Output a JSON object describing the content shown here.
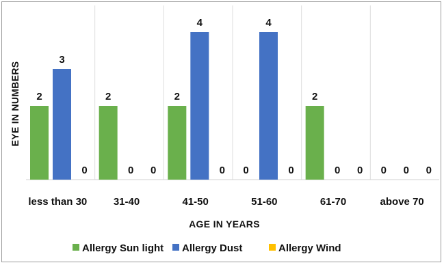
{
  "chart_data": {
    "type": "bar",
    "title": "",
    "xlabel": "AGE IN YEARS",
    "ylabel": "EYE IN NUMBERS",
    "categories": [
      "less than 30",
      "31-40",
      "41-50",
      "51-60",
      "61-70",
      "above 70"
    ],
    "series": [
      {
        "name": "Allergy Sun light",
        "color": "#6ab04c",
        "values": [
          2,
          2,
          2,
          0,
          2,
          0
        ]
      },
      {
        "name": "Allergy Dust",
        "color": "#4472c4",
        "values": [
          3,
          0,
          4,
          4,
          0,
          0
        ]
      },
      {
        "name": "Allergy Wind",
        "color": "#ffc000",
        "values": [
          0,
          0,
          0,
          0,
          0,
          0
        ]
      }
    ],
    "ylim": [
      0,
      4
    ],
    "grid": "vertical separators between categories",
    "legend": "bottom"
  }
}
